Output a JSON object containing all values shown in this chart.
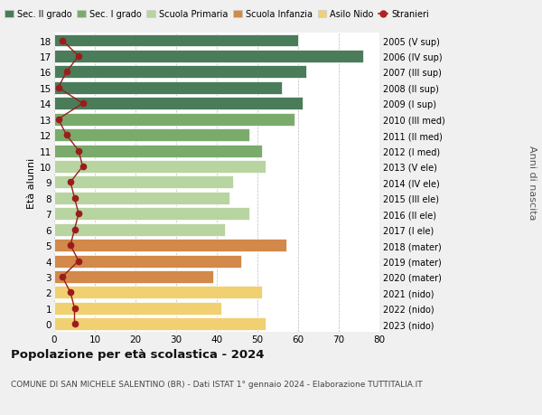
{
  "ages": [
    18,
    17,
    16,
    15,
    14,
    13,
    12,
    11,
    10,
    9,
    8,
    7,
    6,
    5,
    4,
    3,
    2,
    1,
    0
  ],
  "right_labels": [
    "2005 (V sup)",
    "2006 (IV sup)",
    "2007 (III sup)",
    "2008 (II sup)",
    "2009 (I sup)",
    "2010 (III med)",
    "2011 (II med)",
    "2012 (I med)",
    "2013 (V ele)",
    "2014 (IV ele)",
    "2015 (III ele)",
    "2016 (II ele)",
    "2017 (I ele)",
    "2018 (mater)",
    "2019 (mater)",
    "2020 (mater)",
    "2021 (nido)",
    "2022 (nido)",
    "2023 (nido)"
  ],
  "bar_values": [
    60,
    76,
    62,
    56,
    61,
    59,
    48,
    51,
    52,
    44,
    43,
    48,
    42,
    57,
    46,
    39,
    51,
    41,
    52
  ],
  "bar_colors": [
    "#4a7c59",
    "#4a7c59",
    "#4a7c59",
    "#4a7c59",
    "#4a7c59",
    "#7aab6b",
    "#7aab6b",
    "#7aab6b",
    "#b8d4a0",
    "#b8d4a0",
    "#b8d4a0",
    "#b8d4a0",
    "#b8d4a0",
    "#d2894a",
    "#d2894a",
    "#d2894a",
    "#f0d070",
    "#f0d070",
    "#f0d070"
  ],
  "stranieri_values": [
    2,
    6,
    3,
    1,
    7,
    1,
    3,
    6,
    7,
    4,
    5,
    6,
    5,
    4,
    6,
    2,
    4,
    5,
    5
  ],
  "legend_labels": [
    "Sec. II grado",
    "Sec. I grado",
    "Scuola Primaria",
    "Scuola Infanzia",
    "Asilo Nido",
    "Stranieri"
  ],
  "legend_colors": [
    "#4a7c59",
    "#7aab6b",
    "#b8d4a0",
    "#d2894a",
    "#f0d070",
    "#b22222"
  ],
  "title": "Popolazione per età scolastica - 2024",
  "subtitle": "COMUNE DI SAN MICHELE SALENTINO (BR) - Dati ISTAT 1° gennaio 2024 - Elaborazione TUTTITALIA.IT",
  "ylabel_left": "Età alunni",
  "ylabel_right": "Anni di nascita",
  "xlim": [
    0,
    80
  ],
  "xticks": [
    0,
    10,
    20,
    30,
    40,
    50,
    60,
    70,
    80
  ],
  "bg_color": "#f0f0f0",
  "plot_bg": "#ffffff"
}
